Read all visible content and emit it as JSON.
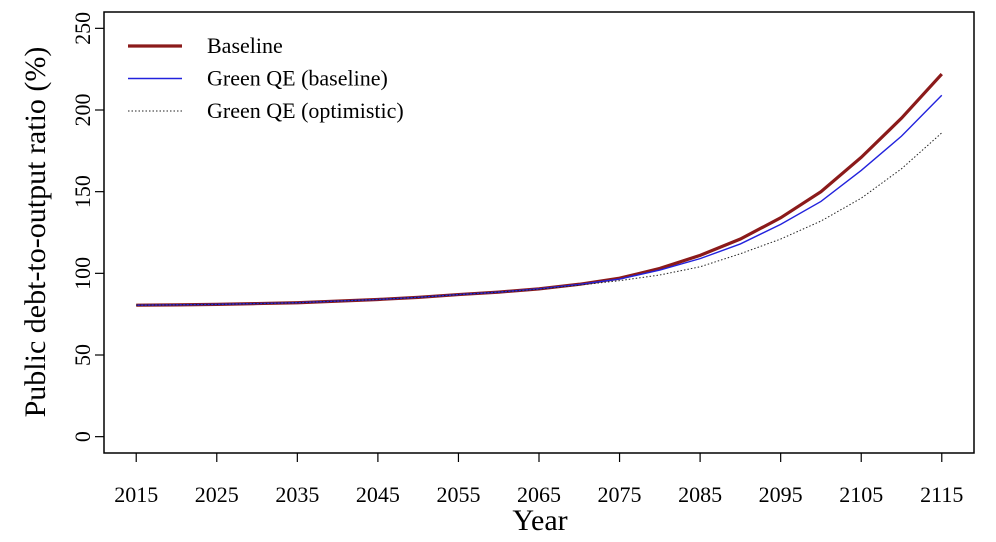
{
  "chart_data": {
    "type": "line",
    "x": [
      2015,
      2020,
      2025,
      2030,
      2035,
      2040,
      2045,
      2050,
      2055,
      2060,
      2065,
      2070,
      2075,
      2080,
      2085,
      2090,
      2095,
      2100,
      2105,
      2110,
      2115
    ],
    "series": [
      {
        "name": "Baseline",
        "color": "#8b1a1a",
        "values": [
          80.5,
          80.7,
          81,
          81.5,
          82,
          83,
          84,
          85.3,
          87,
          88.5,
          90.5,
          93.3,
          97,
          103,
          111,
          121,
          134,
          150,
          171,
          195,
          222
        ]
      },
      {
        "name": "Green QE (baseline)",
        "color": "#2222dd",
        "values": [
          80.5,
          80.7,
          81,
          81.5,
          82,
          83,
          84,
          85.3,
          87,
          88.5,
          90.5,
          93.2,
          96.5,
          102,
          109,
          118,
          130,
          144,
          163,
          184,
          209
        ]
      },
      {
        "name": "Green QE (optimistic)",
        "color": "#222222",
        "values": [
          80.5,
          80.7,
          81,
          81.5,
          82,
          83,
          84,
          85.3,
          87,
          88.5,
          90.3,
          92.8,
          95.5,
          99,
          104,
          112,
          121,
          132,
          146,
          164,
          186
        ]
      }
    ],
    "xlabel": "Year",
    "ylabel": "Public debt-to-output ratio (%)",
    "xlim": [
      2011,
      2119
    ],
    "ylim": [
      -10,
      260
    ],
    "xticks": [
      2015,
      2025,
      2035,
      2045,
      2055,
      2065,
      2075,
      2085,
      2095,
      2105,
      2115
    ],
    "yticks": [
      0,
      50,
      100,
      150,
      200,
      250
    ],
    "legend": "topleft"
  }
}
